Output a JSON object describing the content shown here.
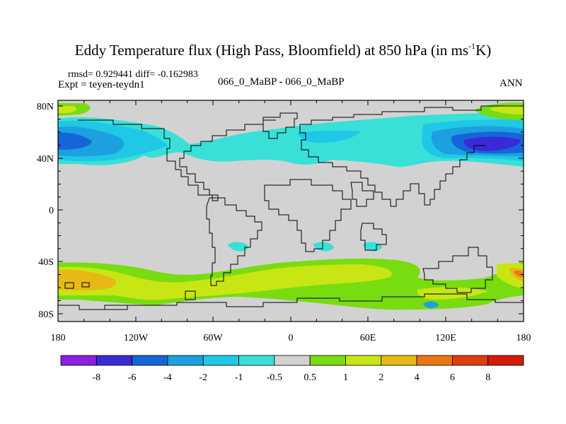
{
  "title": {
    "main": "Eddy Temperature flux (High Pass, Bloomfield) at 850 hPa (in ms",
    "sup": "-1",
    "tail": "K)"
  },
  "stats": {
    "rmsd_diff": "rmsd= 0.929441 diff= -0.162983",
    "expt": "Expt = teyen-teydn1",
    "case": "066_0_MaBP - 066_0_MaBP",
    "period": "ANN"
  },
  "axes": {
    "y_ticks": [
      "80N",
      "40N",
      "0",
      "40S",
      "80S"
    ],
    "x_ticks": [
      "180",
      "120W",
      "60W",
      "0",
      "60E",
      "120E",
      "180"
    ]
  },
  "colorbar": {
    "labels": [
      "-8",
      "-6",
      "-4",
      "-2",
      "-1",
      "-0.5",
      "0.5",
      "1",
      "2",
      "4",
      "6",
      "8"
    ],
    "colors": [
      "#8b1ee0",
      "#3a2ad6",
      "#1466d8",
      "#1da0e0",
      "#1ec8e6",
      "#38e0d8",
      "#d2d2d2",
      "#78dc10",
      "#c8e614",
      "#e8b814",
      "#e87814",
      "#e03c0c",
      "#d41a04"
    ]
  },
  "map": {
    "background_color": "#d2d2d2"
  }
}
